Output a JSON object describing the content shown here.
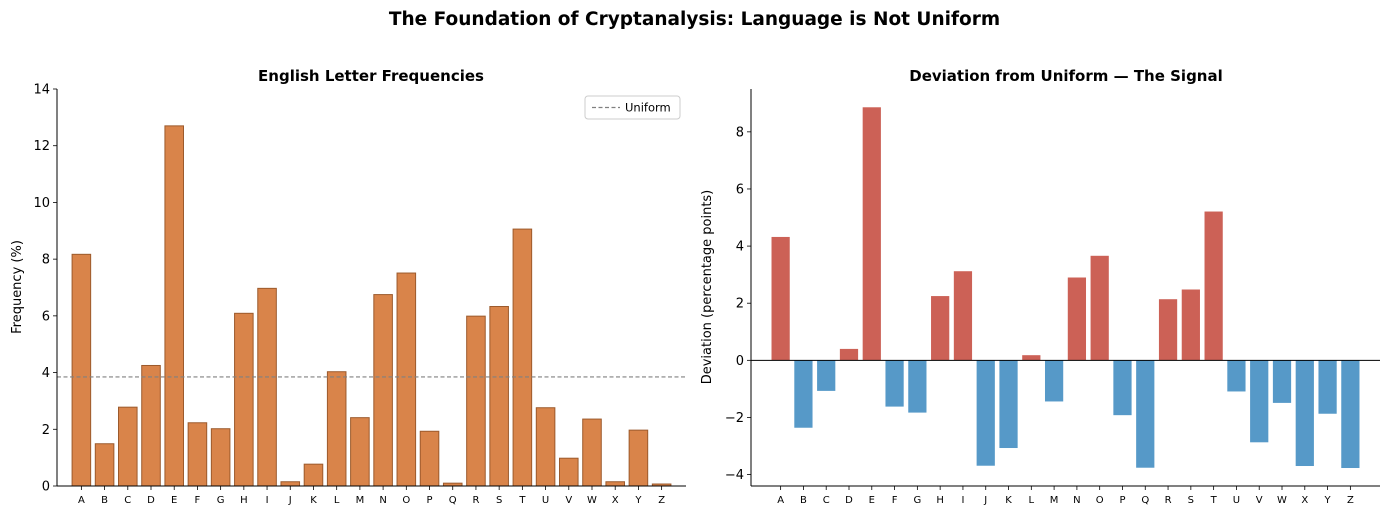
{
  "figure_title": "The Foundation of Cryptanalysis: Language is Not Uniform",
  "colors": {
    "freq_bar": "#d9844a",
    "freq_edge": "#9c5a2c",
    "positive": "#cc6156",
    "negative": "#5699c8",
    "uniform_line": "#808080"
  },
  "chart_data": [
    {
      "type": "bar",
      "title": "English Letter Frequencies",
      "xlabel": "",
      "ylabel": "Frequency (%)",
      "categories": [
        "A",
        "B",
        "C",
        "D",
        "E",
        "F",
        "G",
        "H",
        "I",
        "J",
        "K",
        "L",
        "M",
        "N",
        "O",
        "P",
        "Q",
        "R",
        "S",
        "T",
        "U",
        "V",
        "W",
        "X",
        "Y",
        "Z"
      ],
      "values": [
        8.17,
        1.49,
        2.78,
        4.25,
        12.7,
        2.23,
        2.02,
        6.09,
        6.97,
        0.15,
        0.77,
        4.03,
        2.41,
        6.75,
        7.51,
        1.93,
        0.1,
        5.99,
        6.33,
        9.06,
        2.76,
        0.98,
        2.36,
        0.15,
        1.97,
        0.07
      ],
      "ylim": [
        0,
        14
      ],
      "yticks": [
        0,
        2,
        4,
        6,
        8,
        10,
        12,
        14
      ],
      "reference_line": {
        "value": 3.846,
        "label": "Uniform"
      },
      "legend": {
        "position": "top-right",
        "entries": [
          "Uniform"
        ]
      }
    },
    {
      "type": "bar",
      "title": "Deviation from Uniform — The Signal",
      "xlabel": "",
      "ylabel": "Deviation (percentage points)",
      "categories": [
        "A",
        "B",
        "C",
        "D",
        "E",
        "F",
        "G",
        "H",
        "I",
        "J",
        "K",
        "L",
        "M",
        "N",
        "O",
        "P",
        "Q",
        "R",
        "S",
        "T",
        "U",
        "V",
        "W",
        "X",
        "Y",
        "Z"
      ],
      "values": [
        4.32,
        -2.36,
        -1.07,
        0.4,
        8.86,
        -1.62,
        -1.83,
        2.25,
        3.12,
        -3.69,
        -3.07,
        0.18,
        -1.44,
        2.9,
        3.66,
        -1.92,
        -3.76,
        2.14,
        2.48,
        5.21,
        -1.09,
        -2.87,
        -1.49,
        -3.7,
        -1.87,
        -3.77
      ],
      "ylim": [
        -4.4,
        9.5
      ],
      "yticks": [
        -4,
        -2,
        0,
        2,
        4,
        6,
        8
      ]
    }
  ]
}
